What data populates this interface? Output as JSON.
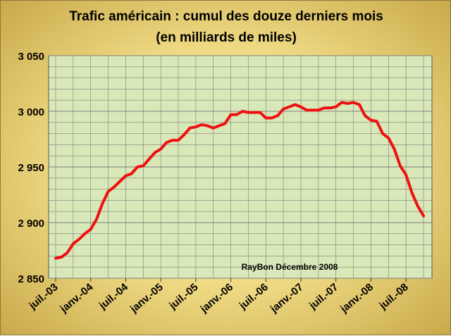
{
  "chart_data": {
    "type": "line",
    "title_line1": "Trafic américain : cumul  des douze derniers mois",
    "title_line2": "(en milliards de miles)",
    "annotation": "RayBon Décembre 2008",
    "ylim": [
      2850,
      3050
    ],
    "yticks": [
      2850,
      2900,
      2950,
      3000,
      3050
    ],
    "ytick_labels": [
      "2 850",
      "2 900",
      "2 950",
      "3 000",
      "3 050"
    ],
    "xtick_labels": [
      "juil.-03",
      "janv.-04",
      "juil.-04",
      "janv.-05",
      "juil.-05",
      "janv.-06",
      "juil.-06",
      "janv.-07",
      "juil.-07",
      "janv.-08",
      "juil.-08"
    ],
    "grid": true,
    "colors": {
      "line": "#ee1111",
      "plot_bg": "#d8e8b8",
      "grid": "#7f7f7f"
    },
    "series": [
      {
        "values": [
          2868,
          2869,
          2873,
          2881,
          2885,
          2890,
          2894,
          2903,
          2917,
          2928,
          2932,
          2937,
          2942,
          2944,
          2950,
          2951,
          2957,
          2963,
          2966,
          2972,
          2974,
          2974,
          2979,
          2985,
          2986,
          2988,
          2987,
          2985,
          2987,
          2989,
          2997,
          2997,
          3000,
          2999,
          2999,
          2999,
          2994,
          2994,
          2996,
          3002,
          3004,
          3006,
          3004,
          3001,
          3001,
          3001,
          3003,
          3003,
          3004,
          3008,
          3007,
          3008,
          3006,
          2996,
          2992,
          2991,
          2980,
          2976,
          2966,
          2951,
          2943,
          2927,
          2915,
          2906
        ]
      }
    ]
  }
}
